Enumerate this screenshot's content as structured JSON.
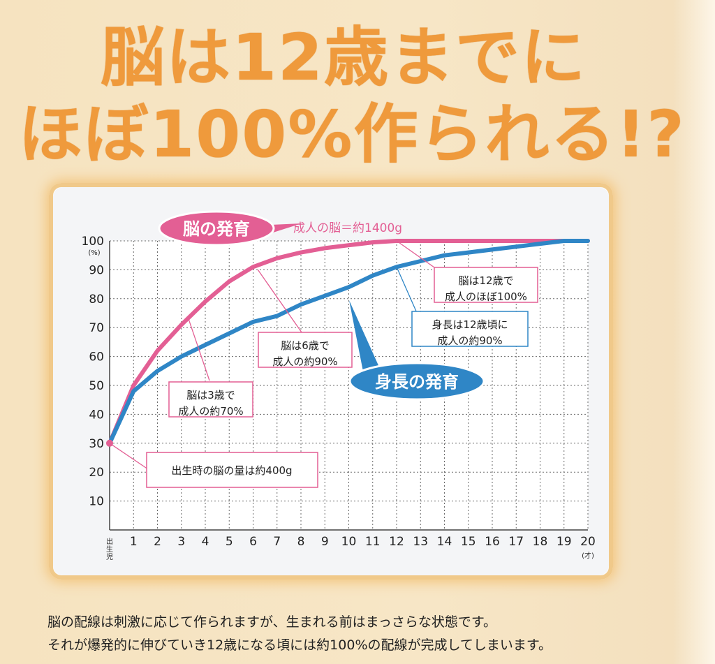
{
  "title": {
    "line1": "脳は12歳までに",
    "line2": "ほぼ100%作られる!?"
  },
  "chart_data": {
    "type": "line",
    "x_tick_labels": [
      "出生児",
      "1",
      "2",
      "3",
      "4",
      "5",
      "6",
      "7",
      "8",
      "9",
      "10",
      "11",
      "12",
      "13",
      "14",
      "15",
      "16",
      "17",
      "18",
      "19",
      "20"
    ],
    "x_unit": "(才)",
    "y_ticks": [
      10,
      20,
      30,
      40,
      50,
      60,
      70,
      80,
      90,
      100
    ],
    "y_unit": "(%)",
    "xlim": [
      0,
      20
    ],
    "ylim": [
      0,
      100
    ],
    "grid": true,
    "series": [
      {
        "name": "脳の発育",
        "color": "#e35f94",
        "x": [
          0,
          1,
          2,
          3,
          4,
          5,
          6,
          7,
          8,
          9,
          10,
          11,
          12,
          13,
          14,
          15,
          16,
          17,
          18,
          19,
          20
        ],
        "y": [
          30,
          50,
          62,
          71,
          79,
          86,
          91,
          94,
          96,
          97.5,
          98.5,
          99.5,
          100,
          100,
          100,
          100,
          100,
          100,
          100,
          100,
          100
        ]
      },
      {
        "name": "身長の発育",
        "color": "#2f86c6",
        "x": [
          0,
          1,
          2,
          3,
          4,
          5,
          6,
          7,
          8,
          9,
          10,
          11,
          12,
          13,
          14,
          15,
          16,
          17,
          18,
          19,
          20
        ],
        "y": [
          30,
          48,
          55,
          60,
          64,
          68,
          72,
          74,
          78,
          81,
          84,
          88,
          91,
          93,
          95,
          96,
          97,
          98,
          99,
          100,
          100
        ]
      }
    ],
    "annotations": {
      "brain_label": "脳の発育",
      "height_label": "身長の発育",
      "adult_brain": "成人の脳＝約1400g",
      "a12_line1": "脳は12歳で",
      "a12_line2": "成人のほぼ100%",
      "h12_line1": "身長は12歳頃に",
      "h12_line2": "成人の約90%",
      "a6_line1": "脳は6歳で",
      "a6_line2": "成人の約90%",
      "a3_line1": "脳は3歳で",
      "a3_line2": "成人の約70%",
      "birth": "出生時の脳の量は約400g"
    }
  },
  "caption": {
    "line1": "脳の配線は刺激に応じて作られますが、生まれる前はまっさらな状態です。",
    "line2": "それが爆発的に伸びていき12歳になる頃には約100%の配線が完成してしまいます。"
  }
}
